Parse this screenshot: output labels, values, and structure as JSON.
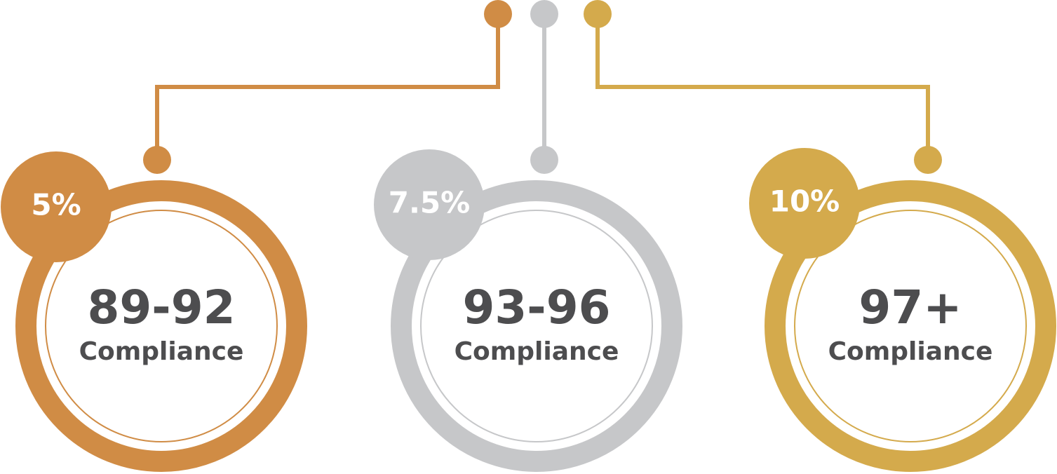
{
  "items": [
    {
      "badge": "5%",
      "value": "89-92",
      "label": "Compliance",
      "color": "#d08c45"
    },
    {
      "badge": "7.5%",
      "value": "93-96",
      "label": "Compliance",
      "color": "#c6c7c9"
    },
    {
      "badge": "10%",
      "value": "97+",
      "label": "Compliance",
      "color": "#d4aa4c"
    }
  ]
}
